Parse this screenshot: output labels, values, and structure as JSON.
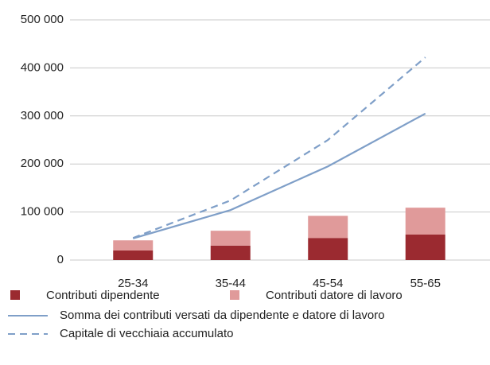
{
  "chart_data": {
    "type": "bar",
    "stacked": true,
    "categories": [
      "25-34",
      "35-44",
      "45-54",
      "55-65"
    ],
    "series": [
      {
        "name": "Contributi dipendente",
        "type": "bar",
        "color": "#9b2a30",
        "values": [
          20000,
          30000,
          46000,
          53000
        ]
      },
      {
        "name": "Contributi datore di lavoro",
        "type": "bar",
        "color": "#e09a9a",
        "values": [
          21000,
          31000,
          46000,
          56000
        ]
      },
      {
        "name": "Somma dei contributi versati da dipendente e datore di lavoro",
        "type": "line",
        "color": "#7f9fc8",
        "dashed": false,
        "values": [
          45000,
          104000,
          195000,
          305000
        ]
      },
      {
        "name": "Capitale di vecchiaia accumulato",
        "type": "line",
        "color": "#7f9fc8",
        "dashed": true,
        "values": [
          46000,
          124000,
          250000,
          422000
        ]
      }
    ],
    "ylim": [
      0,
      500000
    ],
    "yticks": [
      0,
      {
        "value": 100000,
        "label": "100 000"
      },
      {
        "value": 200000,
        "label": "200 000"
      },
      {
        "value": 300000,
        "label": "300 000"
      },
      {
        "value": 400000,
        "label": "400 000"
      },
      {
        "value": 500000,
        "label": "500 000"
      }
    ],
    "grid": true,
    "legend": "bottom"
  }
}
